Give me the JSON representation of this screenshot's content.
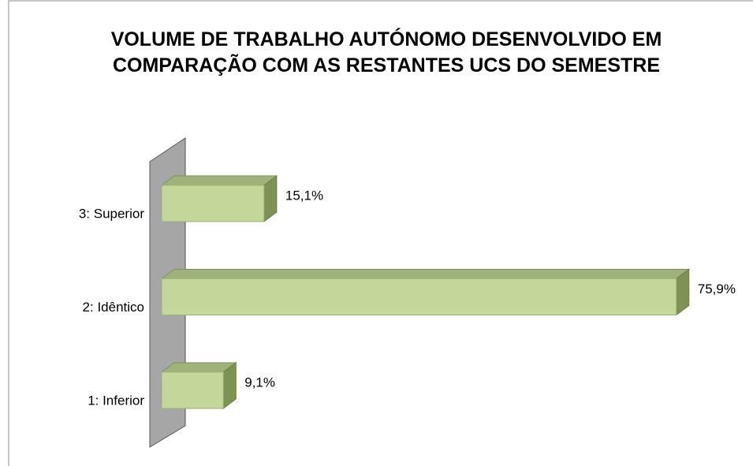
{
  "chart_data": {
    "type": "bar3d",
    "title": "VOLUME DE TRABALHO AUTÓNOMO DESENVOLVIDO EM COMPARAÇÃO COM AS RESTANTES UCS DO SEMESTRE",
    "categories": [
      "3: Superior",
      "2: Idêntico",
      "1: Inferior"
    ],
    "values": [
      15.1,
      75.9,
      9.1
    ],
    "value_labels": [
      "15,1%",
      "75,9%",
      "9,1%"
    ],
    "color": "#c4d79b"
  }
}
